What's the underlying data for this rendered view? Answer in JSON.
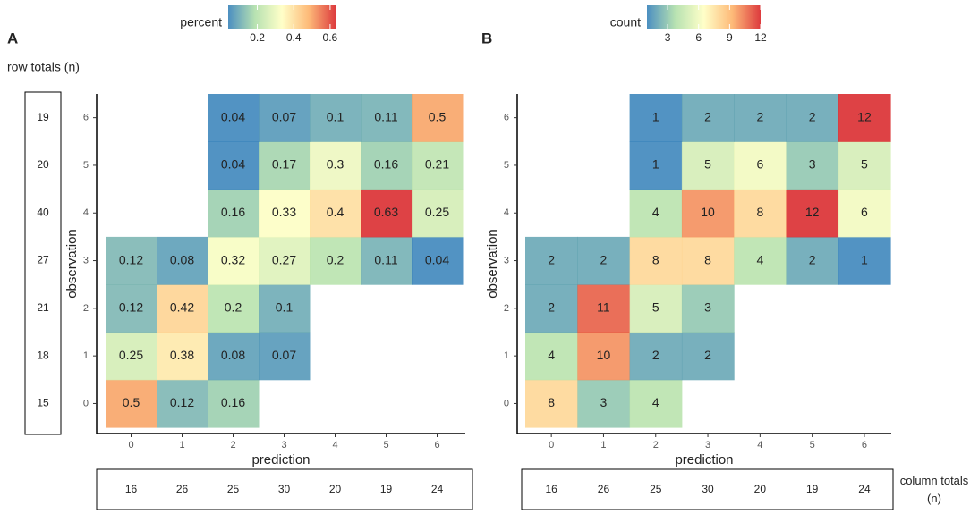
{
  "chart_data": [
    {
      "type": "heatmap",
      "label": "A",
      "x_label": "prediction",
      "y_label": "observation",
      "x": [
        0,
        1,
        2,
        3,
        4,
        5,
        6
      ],
      "y": [
        0,
        1,
        2,
        3,
        4,
        5,
        6
      ],
      "values": [
        [
          0.5,
          0.12,
          0.16,
          null,
          null,
          null,
          null
        ],
        [
          0.25,
          0.38,
          0.08,
          0.07,
          null,
          null,
          null
        ],
        [
          0.12,
          0.42,
          0.2,
          0.1,
          null,
          null,
          null
        ],
        [
          0.12,
          0.08,
          0.32,
          0.27,
          0.2,
          0.11,
          0.04
        ],
        [
          null,
          null,
          0.16,
          0.33,
          0.4,
          0.63,
          0.25
        ],
        [
          null,
          null,
          0.04,
          0.17,
          0.3,
          0.16,
          0.21
        ],
        [
          null,
          null,
          0.04,
          0.07,
          0.1,
          0.11,
          0.5
        ]
      ],
      "colorbar": {
        "title": "percent",
        "lim": [
          0.04,
          0.63
        ],
        "ticks": [
          0.2,
          0.4,
          0.6
        ],
        "colors": [
          "#2c7bb6",
          "#abdda4",
          "#ffffbf",
          "#fdae61",
          "#d7191c"
        ]
      },
      "row_totals_label": "row totals (n)",
      "row_totals": [
        15,
        18,
        21,
        27,
        40,
        20,
        19
      ],
      "column_totals": [
        16,
        26,
        25,
        30,
        20,
        19,
        24
      ]
    },
    {
      "type": "heatmap",
      "label": "B",
      "x_label": "prediction",
      "y_label": "observation",
      "x": [
        0,
        1,
        2,
        3,
        4,
        5,
        6
      ],
      "y": [
        0,
        1,
        2,
        3,
        4,
        5,
        6
      ],
      "values": [
        [
          8,
          3,
          4,
          null,
          null,
          null,
          null
        ],
        [
          4,
          10,
          2,
          2,
          null,
          null,
          null
        ],
        [
          2,
          11,
          5,
          3,
          null,
          null,
          null
        ],
        [
          2,
          2,
          8,
          8,
          4,
          2,
          1
        ],
        [
          null,
          null,
          4,
          10,
          8,
          12,
          6
        ],
        [
          null,
          null,
          1,
          5,
          6,
          3,
          5
        ],
        [
          null,
          null,
          1,
          2,
          2,
          2,
          12
        ]
      ],
      "colorbar": {
        "title": "count",
        "lim": [
          1,
          12
        ],
        "ticks": [
          3,
          6,
          9,
          12
        ],
        "colors": [
          "#2c7bb6",
          "#abdda4",
          "#ffffbf",
          "#fdae61",
          "#d7191c"
        ]
      },
      "column_totals": [
        16,
        26,
        25,
        30,
        20,
        19,
        24
      ],
      "column_totals_label": "column totals (n)"
    }
  ]
}
